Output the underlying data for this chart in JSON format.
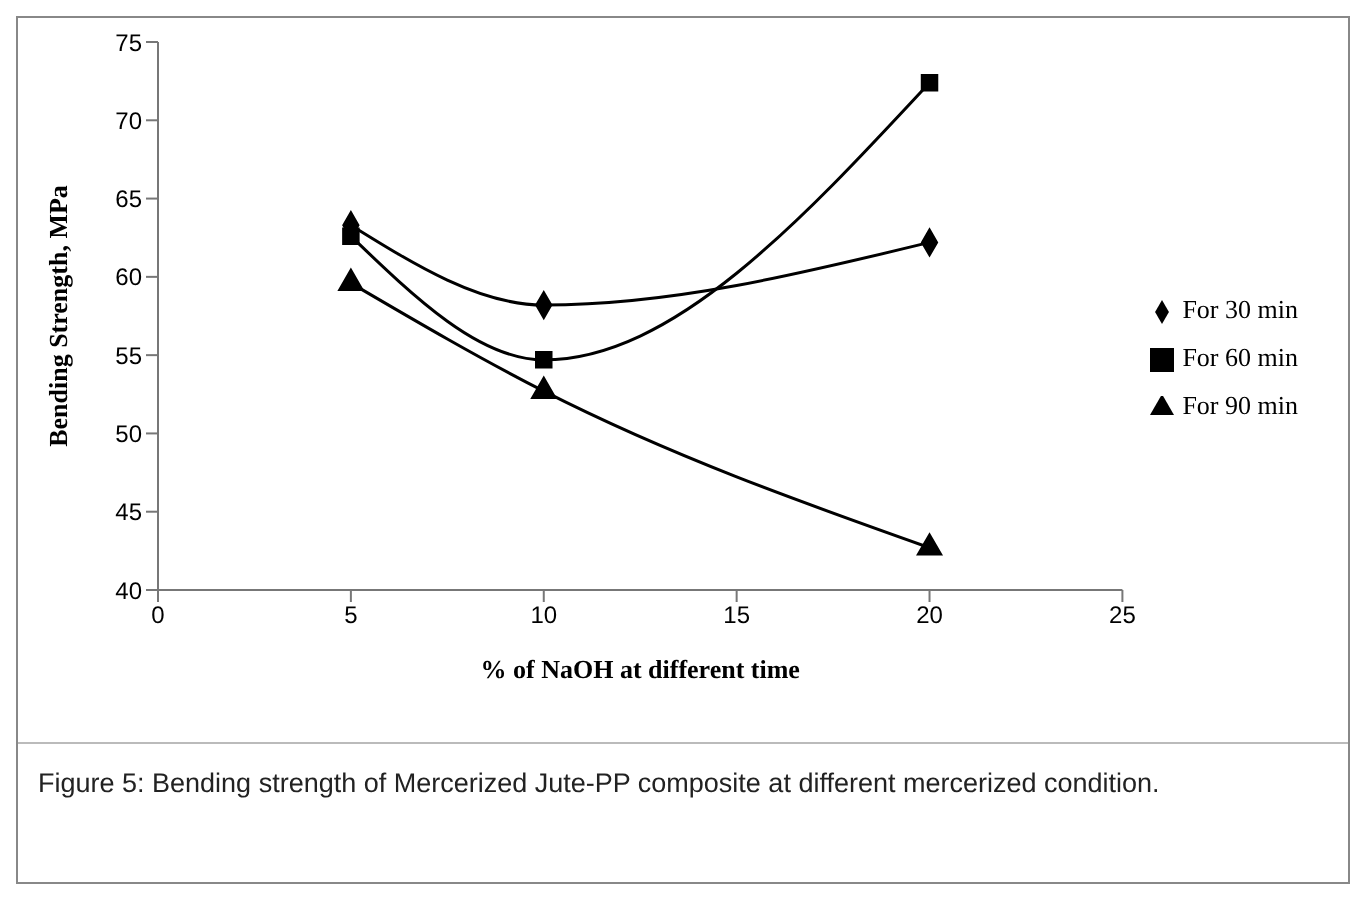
{
  "chart_data": {
    "type": "line",
    "xlabel": "% of NaOH at different time",
    "ylabel": "Bending Strength, MPa",
    "annotations": [
      "Figure 5:  Bending strength of Mercerized Jute-PP composite at different mercerized condition."
    ],
    "x": [
      5,
      10,
      20
    ],
    "series": [
      {
        "name": "For 30 min",
        "color": "#000000",
        "marker": "diamond",
        "values": [
          63.3,
          58.2,
          62.2
        ]
      },
      {
        "name": "For 60 min",
        "color": "#000000",
        "marker": "square",
        "values": [
          62.6,
          54.7,
          72.4
        ]
      },
      {
        "name": "For 90 min",
        "color": "#000000",
        "marker": "triangle",
        "values": [
          59.6,
          52.7,
          42.7
        ]
      }
    ],
    "xlim": [
      0,
      25
    ],
    "xticks": [
      0,
      5,
      10,
      15,
      20,
      25
    ],
    "ylim": [
      40,
      75
    ],
    "yticks": [
      40,
      45,
      50,
      55,
      60,
      65,
      70,
      75
    ],
    "grid": false,
    "legend": "right",
    "line_style": "solid"
  }
}
